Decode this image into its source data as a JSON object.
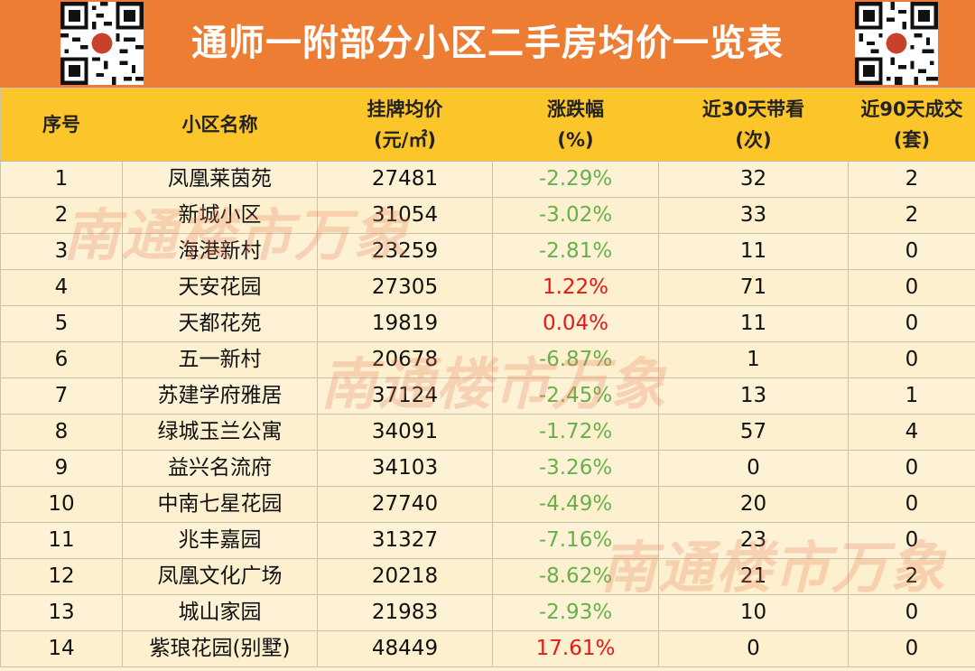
{
  "title": "通师一附部分小区二手房均价一览表",
  "headers": {
    "index": "序号",
    "name": "小区名称",
    "price_line1": "挂牌均价",
    "price_line2": "(元/㎡)",
    "change_line1": "涨跌幅",
    "change_line2": "(%)",
    "views_line1": "近30天带看",
    "views_line2": "(次)",
    "deals_line1": "近90天成交",
    "deals_line2": "(套)"
  },
  "rows": [
    {
      "index": "1",
      "name": "凤凰莱茵苑",
      "price": "27481",
      "change": "-2.29%",
      "trend": "down",
      "views": "32",
      "deals": "2"
    },
    {
      "index": "2",
      "name": "新城小区",
      "price": "31054",
      "change": "-3.02%",
      "trend": "down",
      "views": "33",
      "deals": "2"
    },
    {
      "index": "3",
      "name": "海港新村",
      "price": "23259",
      "change": "-2.81%",
      "trend": "down",
      "views": "11",
      "deals": "0"
    },
    {
      "index": "4",
      "name": "天安花园",
      "price": "27305",
      "change": "1.22%",
      "trend": "up",
      "views": "71",
      "deals": "0"
    },
    {
      "index": "5",
      "name": "天都花苑",
      "price": "19819",
      "change": "0.04%",
      "trend": "up",
      "views": "11",
      "deals": "0"
    },
    {
      "index": "6",
      "name": "五一新村",
      "price": "20678",
      "change": "-6.87%",
      "trend": "down",
      "views": "1",
      "deals": "0"
    },
    {
      "index": "7",
      "name": "苏建学府雅居",
      "price": "37124",
      "change": "-2.45%",
      "trend": "down",
      "views": "13",
      "deals": "1"
    },
    {
      "index": "8",
      "name": "绿城玉兰公寓",
      "price": "34091",
      "change": "-1.72%",
      "trend": "down",
      "views": "57",
      "deals": "4"
    },
    {
      "index": "9",
      "name": "益兴名流府",
      "price": "34103",
      "change": "-3.26%",
      "trend": "down",
      "views": "0",
      "deals": "0"
    },
    {
      "index": "10",
      "name": "中南七星花园",
      "price": "27740",
      "change": "-4.49%",
      "trend": "down",
      "views": "20",
      "deals": "0"
    },
    {
      "index": "11",
      "name": "兆丰嘉园",
      "price": "31327",
      "change": "-7.16%",
      "trend": "down",
      "views": "23",
      "deals": "0"
    },
    {
      "index": "12",
      "name": "凤凰文化广场",
      "price": "20218",
      "change": "-8.62%",
      "trend": "down",
      "views": "21",
      "deals": "2"
    },
    {
      "index": "13",
      "name": "城山家园",
      "price": "21983",
      "change": "-2.93%",
      "trend": "down",
      "views": "10",
      "deals": "0"
    },
    {
      "index": "14",
      "name": "紫琅花园(别墅)",
      "price": "48449",
      "change": "17.61%",
      "trend": "up",
      "views": "0",
      "deals": "0"
    }
  ],
  "watermark": "南通楼市万象",
  "colors": {
    "header_bar": "#ee7d34",
    "table_header": "#fcc52a",
    "negative": "#6aae4a",
    "positive": "#e81717"
  }
}
